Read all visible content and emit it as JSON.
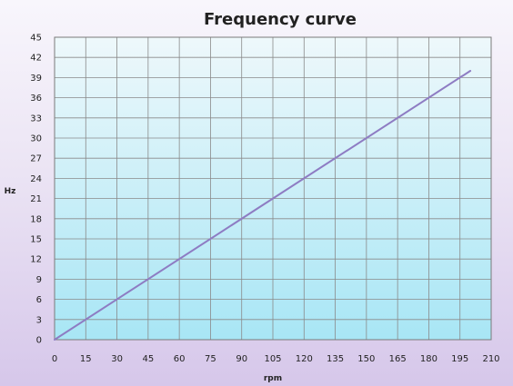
{
  "chart_data": {
    "type": "line",
    "title": "Frequency curve",
    "xlabel": "rpm",
    "ylabel": "Hz",
    "xlim": [
      0,
      210
    ],
    "ylim": [
      0,
      45
    ],
    "xticks": [
      0,
      15,
      30,
      45,
      60,
      75,
      90,
      105,
      120,
      135,
      150,
      165,
      180,
      195,
      210
    ],
    "yticks": [
      0,
      3,
      6,
      9,
      12,
      15,
      18,
      21,
      24,
      27,
      30,
      33,
      36,
      39,
      42,
      45
    ],
    "grid": true,
    "legend": "none",
    "series": [
      {
        "color": "#8e7cc3",
        "x": [
          0,
          200
        ],
        "y": [
          0,
          40
        ]
      }
    ],
    "colors": {
      "plot_top": "#eef8fb",
      "plot_bottom": "#a8e6f5",
      "grid": "#8a8a8a"
    }
  }
}
